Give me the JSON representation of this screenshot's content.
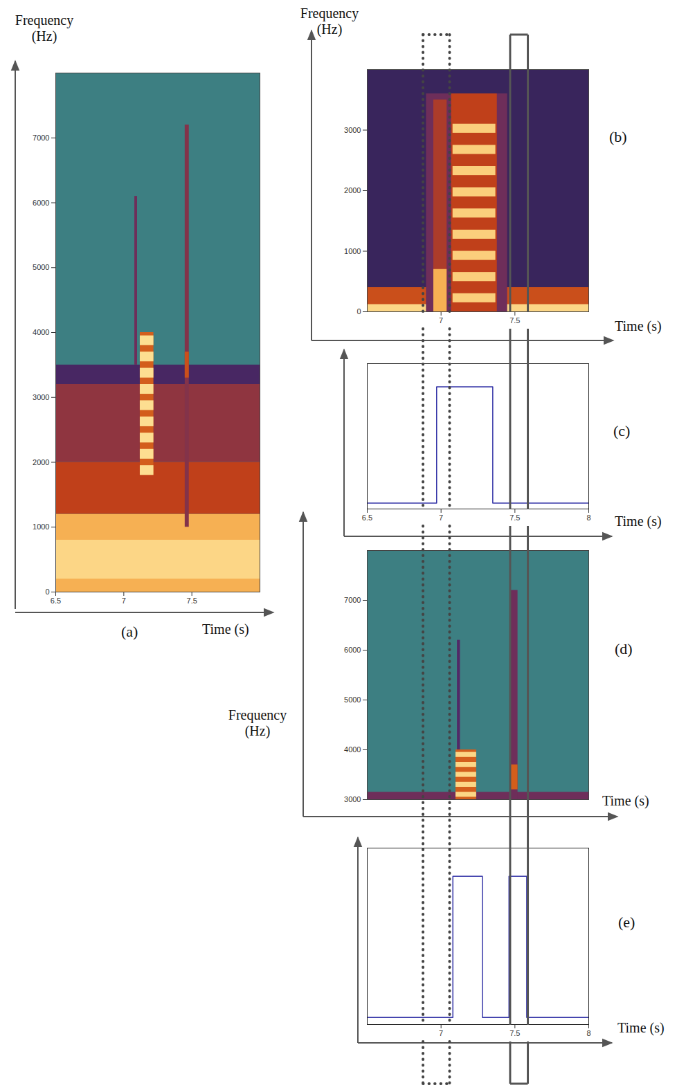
{
  "chart_data": [
    {
      "type": "heatmap",
      "panel_label": "(a)",
      "x_label": "Time (s)",
      "y_label": "Frequency (Hz)",
      "xlim": [
        6.5,
        8
      ],
      "xticks": [
        6.5,
        7,
        7.5
      ],
      "ylim": [
        0,
        8000
      ],
      "yticks": [
        0,
        1000,
        2000,
        3000,
        4000,
        5000,
        6000,
        7000
      ],
      "zlim": [
        0,
        1
      ],
      "cells": [
        [
          6.5,
          8,
          0,
          1200,
          0.85
        ],
        [
          6.5,
          8,
          200,
          800,
          0.95
        ],
        [
          6.5,
          8,
          1200,
          2000,
          0.5
        ],
        [
          6.5,
          8,
          2000,
          3200,
          0.38
        ],
        [
          6.5,
          8,
          3200,
          3500,
          0.18
        ],
        [
          7.12,
          7.22,
          1800,
          4000,
          0.6
        ],
        [
          7.12,
          7.22,
          1800,
          1950,
          0.97
        ],
        [
          7.12,
          7.22,
          2050,
          2200,
          0.97
        ],
        [
          7.12,
          7.22,
          2300,
          2450,
          0.97
        ],
        [
          7.12,
          7.22,
          2550,
          2700,
          0.97
        ],
        [
          7.12,
          7.22,
          2800,
          2950,
          0.97
        ],
        [
          7.12,
          7.22,
          3050,
          3200,
          0.97
        ],
        [
          7.12,
          7.22,
          3300,
          3450,
          0.97
        ],
        [
          7.12,
          7.22,
          3550,
          3700,
          0.97
        ],
        [
          7.12,
          7.22,
          3800,
          3950,
          0.97
        ],
        [
          7.08,
          7.1,
          3500,
          6100,
          0.3
        ],
        [
          7.45,
          7.48,
          1000,
          7200,
          0.35
        ],
        [
          7.45,
          7.48,
          3300,
          3700,
          0.55
        ]
      ]
    },
    {
      "type": "heatmap",
      "panel_label": "(b)",
      "x_label": "Time (s)",
      "y_label": "Frequency (Hz)",
      "xlim": [
        6.5,
        8
      ],
      "xticks": [
        7,
        7.5
      ],
      "ylim": [
        0,
        4000
      ],
      "yticks": [
        0,
        1000,
        2000,
        3000
      ],
      "zlim": [
        0,
        1
      ],
      "cells": [
        [
          6.5,
          8,
          0,
          4000,
          0.12
        ],
        [
          6.5,
          8,
          0,
          400,
          0.55
        ],
        [
          6.5,
          8,
          0,
          120,
          0.95
        ],
        [
          6.9,
          7.45,
          0,
          3600,
          0.3
        ],
        [
          6.95,
          7.04,
          0,
          3500,
          0.45
        ],
        [
          6.95,
          7.04,
          0,
          700,
          0.85
        ],
        [
          7.07,
          7.38,
          0,
          3600,
          0.5
        ],
        [
          7.08,
          7.37,
          150,
          300,
          0.93
        ],
        [
          7.08,
          7.37,
          500,
          650,
          0.93
        ],
        [
          7.08,
          7.37,
          850,
          1000,
          0.93
        ],
        [
          7.08,
          7.37,
          1200,
          1350,
          0.93
        ],
        [
          7.08,
          7.37,
          1550,
          1700,
          0.93
        ],
        [
          7.08,
          7.37,
          1900,
          2050,
          0.93
        ],
        [
          7.08,
          7.37,
          2250,
          2400,
          0.93
        ],
        [
          7.08,
          7.37,
          2600,
          2750,
          0.93
        ],
        [
          7.08,
          7.37,
          2950,
          3100,
          0.93
        ]
      ]
    },
    {
      "type": "line",
      "panel_label": "(c)",
      "x_label": "Time (s)",
      "tick_labels": "x",
      "line_style": "step",
      "color": "#3636a8",
      "xlim": [
        6.5,
        8
      ],
      "xticks": [
        6.5,
        7,
        7.5,
        8
      ],
      "ylim": [
        -0.05,
        1.2
      ],
      "x": [
        6.5,
        6.97,
        7.35,
        8
      ],
      "values": [
        0,
        1,
        0,
        0
      ],
      "highlights": [
        {
          "xlim": [
            6.88,
            7.06
          ],
          "line_style": "dotted"
        },
        {
          "xlim": [
            7.47,
            7.59
          ],
          "line_style": "solid"
        }
      ]
    },
    {
      "type": "heatmap",
      "panel_label": "(d)",
      "x_label": "Time (s)",
      "y_label": "Frequency (Hz)",
      "tick_labels": "y",
      "xlim": [
        6.5,
        8
      ],
      "ylim": [
        3000,
        8000
      ],
      "yticks": [
        3000,
        4000,
        5000,
        6000,
        7000
      ],
      "zlim": [
        0,
        1
      ],
      "cells": [
        [
          6.5,
          8,
          3000,
          3150,
          0.3
        ],
        [
          7.1,
          7.24,
          3000,
          4000,
          0.6
        ],
        [
          7.1,
          7.24,
          3050,
          3150,
          0.95
        ],
        [
          7.1,
          7.24,
          3250,
          3350,
          0.95
        ],
        [
          7.1,
          7.24,
          3450,
          3550,
          0.95
        ],
        [
          7.1,
          7.24,
          3650,
          3750,
          0.95
        ],
        [
          7.1,
          7.24,
          3850,
          3950,
          0.95
        ],
        [
          7.11,
          7.13,
          4000,
          6200,
          0.22
        ],
        [
          7.47,
          7.52,
          3000,
          7200,
          0.3
        ],
        [
          7.47,
          7.52,
          3200,
          3700,
          0.6
        ]
      ]
    },
    {
      "type": "line",
      "panel_label": "(e)",
      "x_label": "Time (s)",
      "tick_labels": "x",
      "line_style": "step",
      "color": "#3636a8",
      "xlim": [
        6.5,
        8
      ],
      "xticks": [
        7,
        7.5,
        8
      ],
      "ylim": [
        -0.05,
        1.2
      ],
      "x": [
        6.5,
        7.08,
        7.28,
        7.46,
        7.58,
        8
      ],
      "values": [
        0,
        1,
        0,
        1,
        0,
        0
      ]
    }
  ]
}
